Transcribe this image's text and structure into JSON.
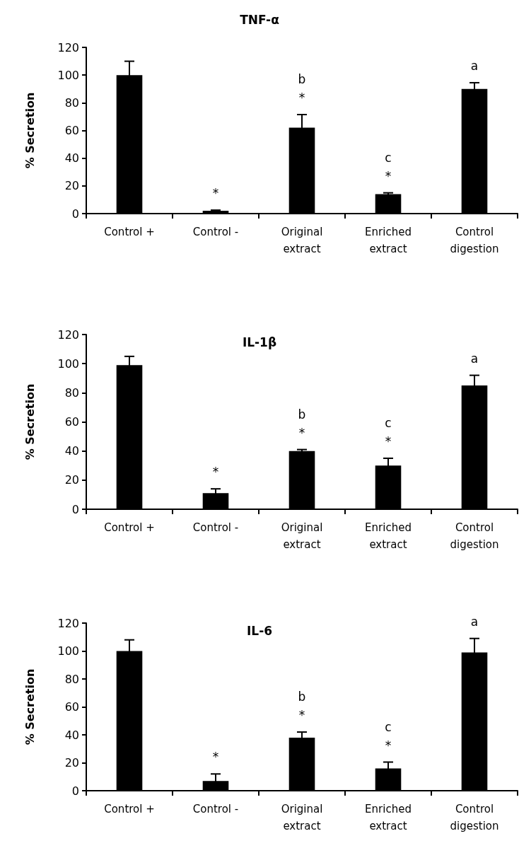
{
  "chart_data": [
    {
      "type": "bar",
      "title": "TNF-α",
      "ylabel": "% Secretion",
      "categories": [
        "Control +",
        "Control -",
        "Original\nextract",
        "Enriched\nextract",
        "Control\ndigestion"
      ],
      "values": [
        100,
        2,
        62,
        14,
        90
      ],
      "errors": [
        10,
        0.5,
        9.5,
        1,
        4.5
      ],
      "color": "#000000",
      "ylim": [
        0,
        120
      ],
      "yticks": [
        0,
        20,
        40,
        60,
        80,
        100,
        120
      ],
      "grid": false,
      "annotations": [
        "*",
        "*",
        "b",
        "*",
        "c",
        "a"
      ]
    },
    {
      "type": "bar",
      "title": "IL-1β",
      "ylabel": "% Secretion",
      "categories": [
        "Control +",
        "Control -",
        "Original\nextract",
        "Enriched\nextract",
        "Control\ndigestion"
      ],
      "values": [
        99,
        11,
        40,
        30,
        85
      ],
      "errors": [
        6,
        3,
        1,
        5,
        7
      ],
      "color": "#000000",
      "ylim": [
        0,
        120
      ],
      "yticks": [
        0,
        20,
        40,
        60,
        80,
        100,
        120
      ],
      "grid": false,
      "annotations": [
        "*",
        "*",
        "b",
        "*",
        "c",
        "a"
      ]
    },
    {
      "type": "bar",
      "title": "IL-6",
      "ylabel": "% Secretion",
      "categories": [
        "Control +",
        "Control -",
        "Original\nextract",
        "Enriched\nextract",
        "Control\ndigestion"
      ],
      "values": [
        100,
        7,
        38,
        16,
        99
      ],
      "errors": [
        8,
        5,
        4,
        4.5,
        10
      ],
      "color": "#000000",
      "ylim": [
        0,
        120
      ],
      "yticks": [
        0,
        20,
        40,
        60,
        80,
        100,
        120
      ],
      "grid": false,
      "annotations": [
        "*",
        "*",
        "b",
        "*",
        "c",
        "a"
      ]
    }
  ]
}
